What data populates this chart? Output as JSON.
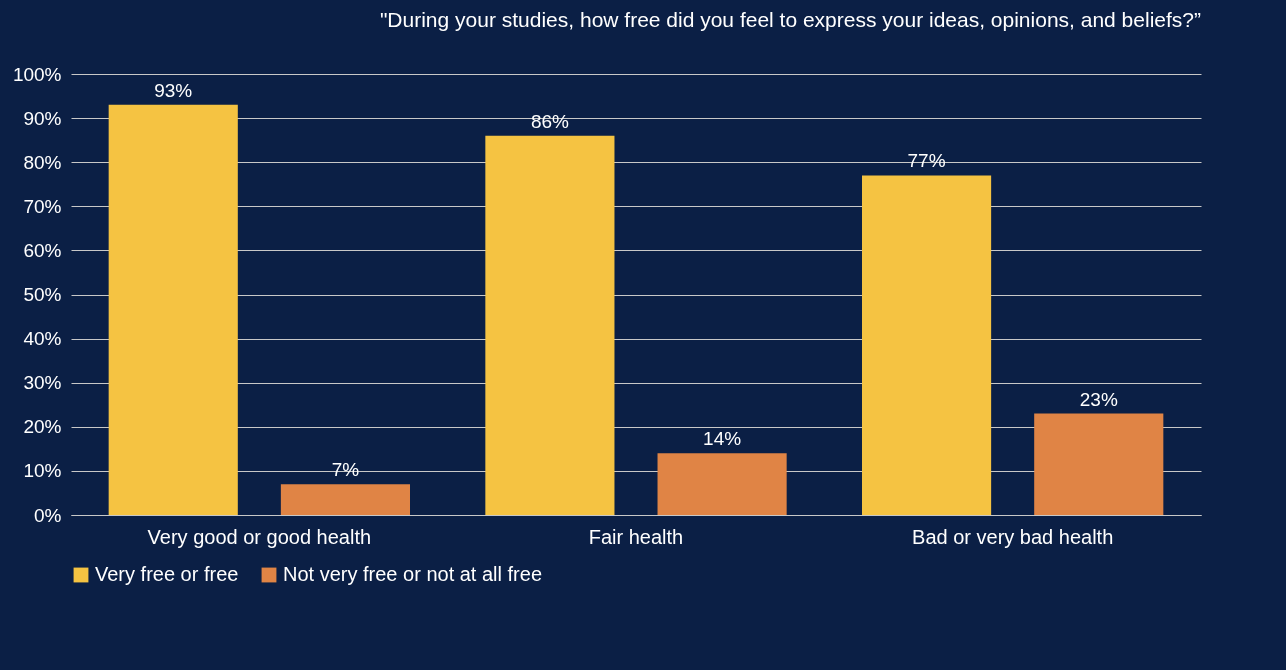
{
  "chart_data": {
    "type": "bar",
    "title": "\"During your studies, how free did you feel to express your ideas, opinions, and beliefs?”",
    "categories": [
      "Very good or good health",
      "Fair health",
      "Bad or very bad health"
    ],
    "series": [
      {
        "name": "Very free or free",
        "color": "#f5c342",
        "values": [
          93,
          86,
          77
        ],
        "value_labels": [
          "93%",
          "86%",
          "77%"
        ]
      },
      {
        "name": "Not very free or not at all free",
        "color": "#e08445",
        "values": [
          7,
          14,
          23
        ],
        "value_labels": [
          "7%",
          "14%",
          "23%"
        ]
      }
    ],
    "ylim": [
      0,
      100
    ],
    "yticks": [
      {
        "value": 0,
        "label": "0%"
      },
      {
        "value": 10,
        "label": "10%"
      },
      {
        "value": 20,
        "label": "20%"
      },
      {
        "value": 30,
        "label": "30%"
      },
      {
        "value": 40,
        "label": "40%"
      },
      {
        "value": 50,
        "label": "50%"
      },
      {
        "value": 60,
        "label": "60%"
      },
      {
        "value": 70,
        "label": "70%"
      },
      {
        "value": 80,
        "label": "80%"
      },
      {
        "value": 90,
        "label": "90%"
      },
      {
        "value": 100,
        "label": "100%"
      }
    ],
    "grid": "y",
    "legend": "bottom"
  }
}
